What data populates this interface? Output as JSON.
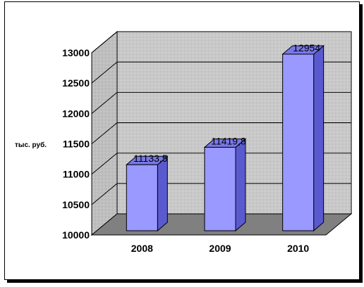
{
  "chart_data": {
    "type": "bar",
    "categories": [
      "2008",
      "2009",
      "2010"
    ],
    "values": [
      11133.5,
      11419.8,
      12954
    ],
    "data_labels": [
      "11133,5",
      "11419,8",
      "12954"
    ],
    "ylabel": "тыс. руб.",
    "ylim": [
      10000,
      13000
    ],
    "y_ticks": [
      "10000",
      "10500",
      "11000",
      "11500",
      "12000",
      "12500",
      "13000"
    ],
    "style": "3d-column",
    "grid": true,
    "legend": "none",
    "colors": {
      "bar_front": "#9999ff",
      "bar_side": "#5a5ad0",
      "bar_top": "#7878e8",
      "back_wall": "#c8c8c8",
      "side_wall": "#c0c0c0",
      "floor": "#808080"
    }
  }
}
